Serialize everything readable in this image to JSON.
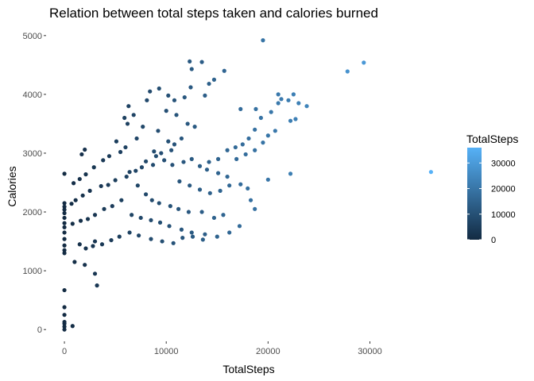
{
  "chart_data": {
    "type": "scatter",
    "title": "Relation between total steps taken and calories burned",
    "xlabel": "TotalSteps",
    "ylabel": "Calories",
    "xlim": [
      -1800,
      38000
    ],
    "ylim": [
      -200,
      5200
    ],
    "x_ticks": [
      0,
      10000,
      20000,
      30000
    ],
    "x_tick_labels": [
      "0",
      "10000",
      "20000",
      "30000"
    ],
    "y_ticks": [
      0,
      1000,
      2000,
      3000,
      4000,
      5000
    ],
    "y_tick_labels": [
      "0",
      "1000",
      "2000",
      "3000",
      "4000",
      "5000"
    ],
    "grid": false,
    "legend": {
      "title": "TotalSteps",
      "placement": "right",
      "type": "colorbar",
      "range": [
        0,
        36000
      ],
      "ticks": [
        0,
        10000,
        20000,
        30000
      ],
      "tick_labels": [
        "0",
        "10000",
        "20000",
        "30000"
      ],
      "color_low": "#132B43",
      "color_high": "#56B1F7"
    },
    "points": [
      [
        0,
        0
      ],
      [
        0,
        50
      ],
      [
        0,
        100
      ],
      [
        0,
        130
      ],
      [
        0,
        250
      ],
      [
        0,
        380
      ],
      [
        0,
        670
      ],
      [
        800,
        60
      ],
      [
        0,
        2650
      ],
      [
        0,
        1300
      ],
      [
        0,
        1350
      ],
      [
        0,
        1430
      ],
      [
        0,
        1540
      ],
      [
        0,
        1650
      ],
      [
        0,
        1740
      ],
      [
        0,
        1810
      ],
      [
        0,
        1900
      ],
      [
        0,
        1980
      ],
      [
        0,
        2040
      ],
      [
        0,
        2090
      ],
      [
        0,
        2150
      ],
      [
        1700,
        2980
      ],
      [
        2000,
        3060
      ],
      [
        1000,
        1150
      ],
      [
        2000,
        1100
      ],
      [
        3000,
        950
      ],
      [
        3200,
        750
      ],
      [
        1500,
        1450
      ],
      [
        3000,
        1500
      ],
      [
        19500,
        4920
      ],
      [
        12300,
        4560
      ],
      [
        13500,
        4550
      ],
      [
        12500,
        4430
      ],
      [
        15700,
        4400
      ],
      [
        14700,
        4250
      ],
      [
        14200,
        4180
      ],
      [
        13800,
        3980
      ],
      [
        12400,
        4120
      ],
      [
        10000,
        3720
      ],
      [
        11000,
        3650
      ],
      [
        11800,
        3950
      ],
      [
        12100,
        3500
      ],
      [
        12800,
        3450
      ],
      [
        9200,
        3380
      ],
      [
        10200,
        3200
      ],
      [
        10500,
        3050
      ],
      [
        10800,
        3150
      ],
      [
        11500,
        3250
      ],
      [
        8800,
        3030
      ],
      [
        9500,
        3000
      ],
      [
        8000,
        2860
      ],
      [
        8700,
        2800
      ],
      [
        7600,
        2760
      ],
      [
        7000,
        2700
      ],
      [
        6400,
        2680
      ],
      [
        6100,
        2600
      ],
      [
        5000,
        2540
      ],
      [
        4300,
        2460
      ],
      [
        3600,
        2440
      ],
      [
        2500,
        2360
      ],
      [
        1800,
        2280
      ],
      [
        1100,
        2200
      ],
      [
        700,
        2140
      ],
      [
        6800,
        3650
      ],
      [
        6200,
        3500
      ],
      [
        7100,
        3250
      ],
      [
        6000,
        3100
      ],
      [
        5500,
        3020
      ],
      [
        4400,
        2950
      ],
      [
        3800,
        2880
      ],
      [
        2900,
        2760
      ],
      [
        2100,
        2640
      ],
      [
        1500,
        2560
      ],
      [
        900,
        2490
      ],
      [
        5100,
        3200
      ],
      [
        5900,
        3600
      ],
      [
        6300,
        3800
      ],
      [
        7700,
        3450
      ],
      [
        8100,
        3900
      ],
      [
        8400,
        4050
      ],
      [
        9300,
        4100
      ],
      [
        10200,
        3980
      ],
      [
        10800,
        3900
      ],
      [
        7200,
        2450
      ],
      [
        8000,
        2300
      ],
      [
        8600,
        2200
      ],
      [
        9300,
        2150
      ],
      [
        10400,
        2100
      ],
      [
        11200,
        2050
      ],
      [
        12200,
        2000
      ],
      [
        13500,
        2000
      ],
      [
        14700,
        1900
      ],
      [
        15600,
        1950
      ],
      [
        5600,
        2200
      ],
      [
        4700,
        2100
      ],
      [
        3900,
        2050
      ],
      [
        3000,
        1950
      ],
      [
        2300,
        1880
      ],
      [
        1600,
        1850
      ],
      [
        800,
        1800
      ],
      [
        6600,
        1950
      ],
      [
        7500,
        1900
      ],
      [
        8500,
        1860
      ],
      [
        9400,
        1820
      ],
      [
        10300,
        1760
      ],
      [
        11500,
        1700
      ],
      [
        12500,
        1650
      ],
      [
        13800,
        1620
      ],
      [
        15000,
        1580
      ],
      [
        16200,
        1650
      ],
      [
        17200,
        1760
      ],
      [
        6400,
        1650
      ],
      [
        5400,
        1580
      ],
      [
        4600,
        1520
      ],
      [
        3700,
        1450
      ],
      [
        2800,
        1420
      ],
      [
        2100,
        1380
      ],
      [
        7300,
        1600
      ],
      [
        8500,
        1540
      ],
      [
        9600,
        1500
      ],
      [
        10700,
        1470
      ],
      [
        11600,
        1560
      ],
      [
        12600,
        1580
      ],
      [
        13600,
        1530
      ],
      [
        11300,
        2520
      ],
      [
        12300,
        2450
      ],
      [
        13300,
        2380
      ],
      [
        14300,
        2320
      ],
      [
        15300,
        2360
      ],
      [
        16200,
        2450
      ],
      [
        14200,
        2850
      ],
      [
        15100,
        2900
      ],
      [
        16000,
        3050
      ],
      [
        16800,
        3100
      ],
      [
        17500,
        3150
      ],
      [
        18100,
        3250
      ],
      [
        18700,
        3400
      ],
      [
        19300,
        3600
      ],
      [
        20300,
        3700
      ],
      [
        21000,
        3850
      ],
      [
        22000,
        3900
      ],
      [
        23000,
        3850
      ],
      [
        23800,
        3800
      ],
      [
        22500,
        4000
      ],
      [
        21300,
        3920
      ],
      [
        22200,
        3550
      ],
      [
        22700,
        3580
      ],
      [
        20700,
        3380
      ],
      [
        20000,
        3300
      ],
      [
        19500,
        3180
      ],
      [
        18700,
        3050
      ],
      [
        17800,
        2980
      ],
      [
        16900,
        2900
      ],
      [
        17300,
        2470
      ],
      [
        18000,
        2400
      ],
      [
        18300,
        2200
      ],
      [
        18700,
        2050
      ],
      [
        20000,
        2550
      ],
      [
        22200,
        2650
      ],
      [
        17300,
        3750
      ],
      [
        18800,
        3750
      ],
      [
        21000,
        4000
      ],
      [
        27800,
        4390
      ],
      [
        29400,
        4540
      ],
      [
        36000,
        2680
      ],
      [
        9000,
        2950
      ],
      [
        9800,
        2880
      ],
      [
        10600,
        2800
      ],
      [
        11700,
        2850
      ],
      [
        12500,
        2900
      ],
      [
        13300,
        2780
      ],
      [
        14000,
        2720
      ],
      [
        15100,
        2660
      ],
      [
        16000,
        2600
      ]
    ]
  }
}
